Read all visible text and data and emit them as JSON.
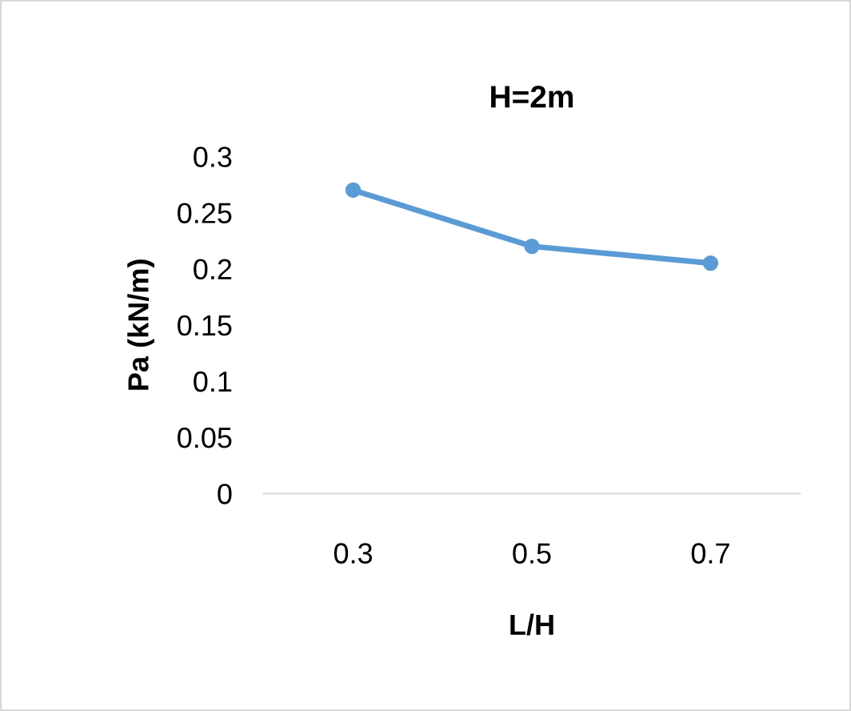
{
  "chart_data": {
    "type": "line",
    "title": "H=2m",
    "xlabel": "L/H",
    "ylabel": "Pa (kN/m)",
    "categories": [
      "0.3",
      "0.5",
      "0.7"
    ],
    "series": [
      {
        "color": "#5b9bd5",
        "values": [
          0.27,
          0.22,
          0.205
        ]
      }
    ],
    "ylim": [
      0,
      0.3
    ],
    "yticks": [
      0,
      0.05,
      0.1,
      0.15,
      0.2,
      0.25,
      0.3
    ],
    "grid": false,
    "legend": false,
    "marker": "circle",
    "line_style": "solid"
  }
}
